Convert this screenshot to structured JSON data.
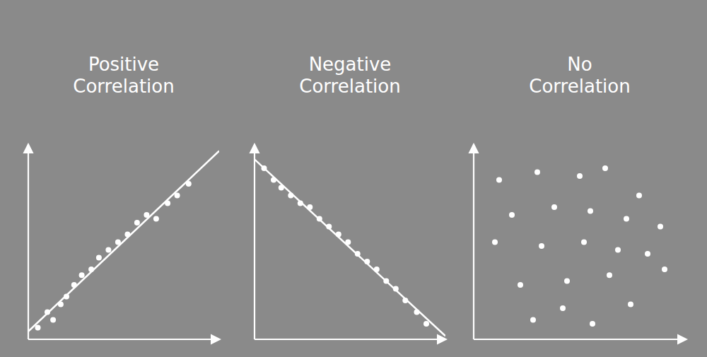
{
  "chart_data": [
    {
      "type": "scatter",
      "title": "Positive\nCorrelation",
      "xlim": [
        0,
        1
      ],
      "ylim": [
        0,
        1
      ],
      "tick_labels": false,
      "grid": false,
      "series": [
        {
          "type": "scatter",
          "marker": "circle",
          "color": "#ffffff",
          "x": [
            0.05,
            0.1,
            0.13,
            0.17,
            0.2,
            0.24,
            0.28,
            0.33,
            0.37,
            0.42,
            0.47,
            0.52,
            0.57,
            0.62,
            0.67,
            0.73,
            0.78,
            0.84
          ],
          "values": [
            0.06,
            0.14,
            0.1,
            0.18,
            0.22,
            0.28,
            0.33,
            0.36,
            0.42,
            0.46,
            0.5,
            0.54,
            0.6,
            0.64,
            0.62,
            0.7,
            0.74,
            0.8
          ]
        },
        {
          "type": "line",
          "line_style": "solid",
          "color": "#ffffff",
          "x": [
            0,
            1
          ],
          "values": [
            0.041,
            0.969
          ]
        }
      ]
    },
    {
      "type": "scatter",
      "title": "Negative\nCorrelation",
      "xlim": [
        0,
        1
      ],
      "ylim": [
        0,
        1
      ],
      "tick_labels": false,
      "grid": false,
      "series": [
        {
          "type": "scatter",
          "marker": "circle",
          "color": "#ffffff",
          "x": [
            0.05,
            0.1,
            0.14,
            0.19,
            0.24,
            0.29,
            0.34,
            0.39,
            0.44,
            0.49,
            0.54,
            0.59,
            0.64,
            0.69,
            0.74,
            0.79,
            0.85,
            0.9
          ],
          "values": [
            0.88,
            0.82,
            0.78,
            0.74,
            0.7,
            0.68,
            0.62,
            0.58,
            0.54,
            0.5,
            0.44,
            0.4,
            0.36,
            0.3,
            0.26,
            0.2,
            0.14,
            0.08
          ]
        },
        {
          "type": "line",
          "line_style": "solid",
          "color": "#ffffff",
          "x": [
            0,
            1
          ],
          "values": [
            0.926,
            0.017
          ]
        }
      ]
    },
    {
      "type": "scatter",
      "title": "No\nCorrelation",
      "xlim": [
        0,
        1
      ],
      "ylim": [
        0,
        1
      ],
      "tick_labels": false,
      "grid": false,
      "series": [
        {
          "type": "scatter",
          "marker": "circle",
          "color": "#ffffff",
          "x": [
            0.12,
            0.3,
            0.5,
            0.62,
            0.78,
            0.18,
            0.38,
            0.55,
            0.72,
            0.88,
            0.1,
            0.32,
            0.52,
            0.68,
            0.82,
            0.22,
            0.44,
            0.64,
            0.42,
            0.9,
            0.74,
            0.56,
            0.28
          ],
          "values": [
            0.82,
            0.86,
            0.84,
            0.88,
            0.74,
            0.64,
            0.68,
            0.66,
            0.62,
            0.58,
            0.5,
            0.48,
            0.5,
            0.46,
            0.44,
            0.28,
            0.3,
            0.33,
            0.16,
            0.36,
            0.18,
            0.08,
            0.1
          ]
        }
      ]
    }
  ]
}
